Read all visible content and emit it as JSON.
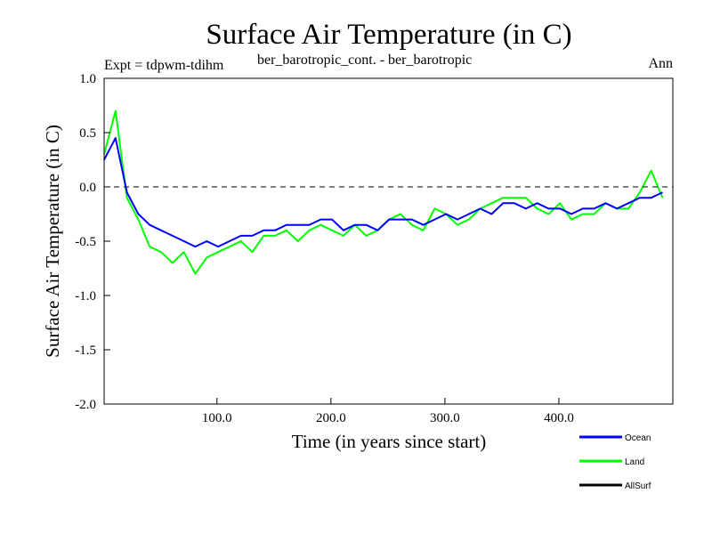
{
  "chart_data": {
    "type": "line",
    "title": "Surface Air Temperature (in C)",
    "subtitle_left": "Expt = tdpwm-tdihm",
    "subtitle_center": "ber_barotropic_cont. - ber_barotropic",
    "subtitle_right": "Ann",
    "xlabel": "Time (in years since start)",
    "ylabel": "Surface Air Temperature (in C)",
    "xlim": [
      1,
      500
    ],
    "ylim": [
      -2.0,
      1.0
    ],
    "x_ticks": [
      100,
      200,
      300,
      400
    ],
    "x_tick_labels": [
      "100.0",
      "200.0",
      "300.0",
      "400.0"
    ],
    "y_ticks": [
      1.0,
      0.5,
      0.0,
      -0.5,
      -1.0,
      -1.5,
      -2.0
    ],
    "y_tick_labels": [
      "1.0",
      "0.5",
      "0.0",
      "-0.5",
      "-1.0",
      "-1.5",
      "-2.0"
    ],
    "reference_line": 0.0,
    "x_step": 10,
    "series": [
      {
        "name": "Ocean",
        "color": "#0000ff",
        "values": [
          0.25,
          0.45,
          -0.05,
          -0.25,
          -0.35,
          -0.4,
          -0.45,
          -0.5,
          -0.55,
          -0.5,
          -0.55,
          -0.5,
          -0.45,
          -0.45,
          -0.4,
          -0.4,
          -0.35,
          -0.35,
          -0.35,
          -0.3,
          -0.3,
          -0.4,
          -0.35,
          -0.35,
          -0.4,
          -0.3,
          -0.3,
          -0.3,
          -0.35,
          -0.3,
          -0.25,
          -0.3,
          -0.25,
          -0.2,
          -0.25,
          -0.15,
          -0.15,
          -0.2,
          -0.15,
          -0.2,
          -0.2,
          -0.25,
          -0.2,
          -0.2,
          -0.15,
          -0.2,
          -0.15,
          -0.1,
          -0.1,
          -0.05
        ]
      },
      {
        "name": "Land",
        "color": "#00ff00",
        "values": [
          0.3,
          0.7,
          -0.1,
          -0.3,
          -0.55,
          -0.6,
          -0.7,
          -0.6,
          -0.8,
          -0.65,
          -0.6,
          -0.55,
          -0.5,
          -0.6,
          -0.45,
          -0.45,
          -0.4,
          -0.5,
          -0.4,
          -0.35,
          -0.4,
          -0.45,
          -0.35,
          -0.45,
          -0.4,
          -0.3,
          -0.25,
          -0.35,
          -0.4,
          -0.2,
          -0.25,
          -0.35,
          -0.3,
          -0.2,
          -0.15,
          -0.1,
          -0.1,
          -0.1,
          -0.2,
          -0.25,
          -0.15,
          -0.3,
          -0.25,
          -0.25,
          -0.15,
          -0.2,
          -0.2,
          -0.05,
          0.15,
          -0.1
        ]
      },
      {
        "name": "AllSurf",
        "color": "#000000",
        "values": []
      }
    ]
  }
}
